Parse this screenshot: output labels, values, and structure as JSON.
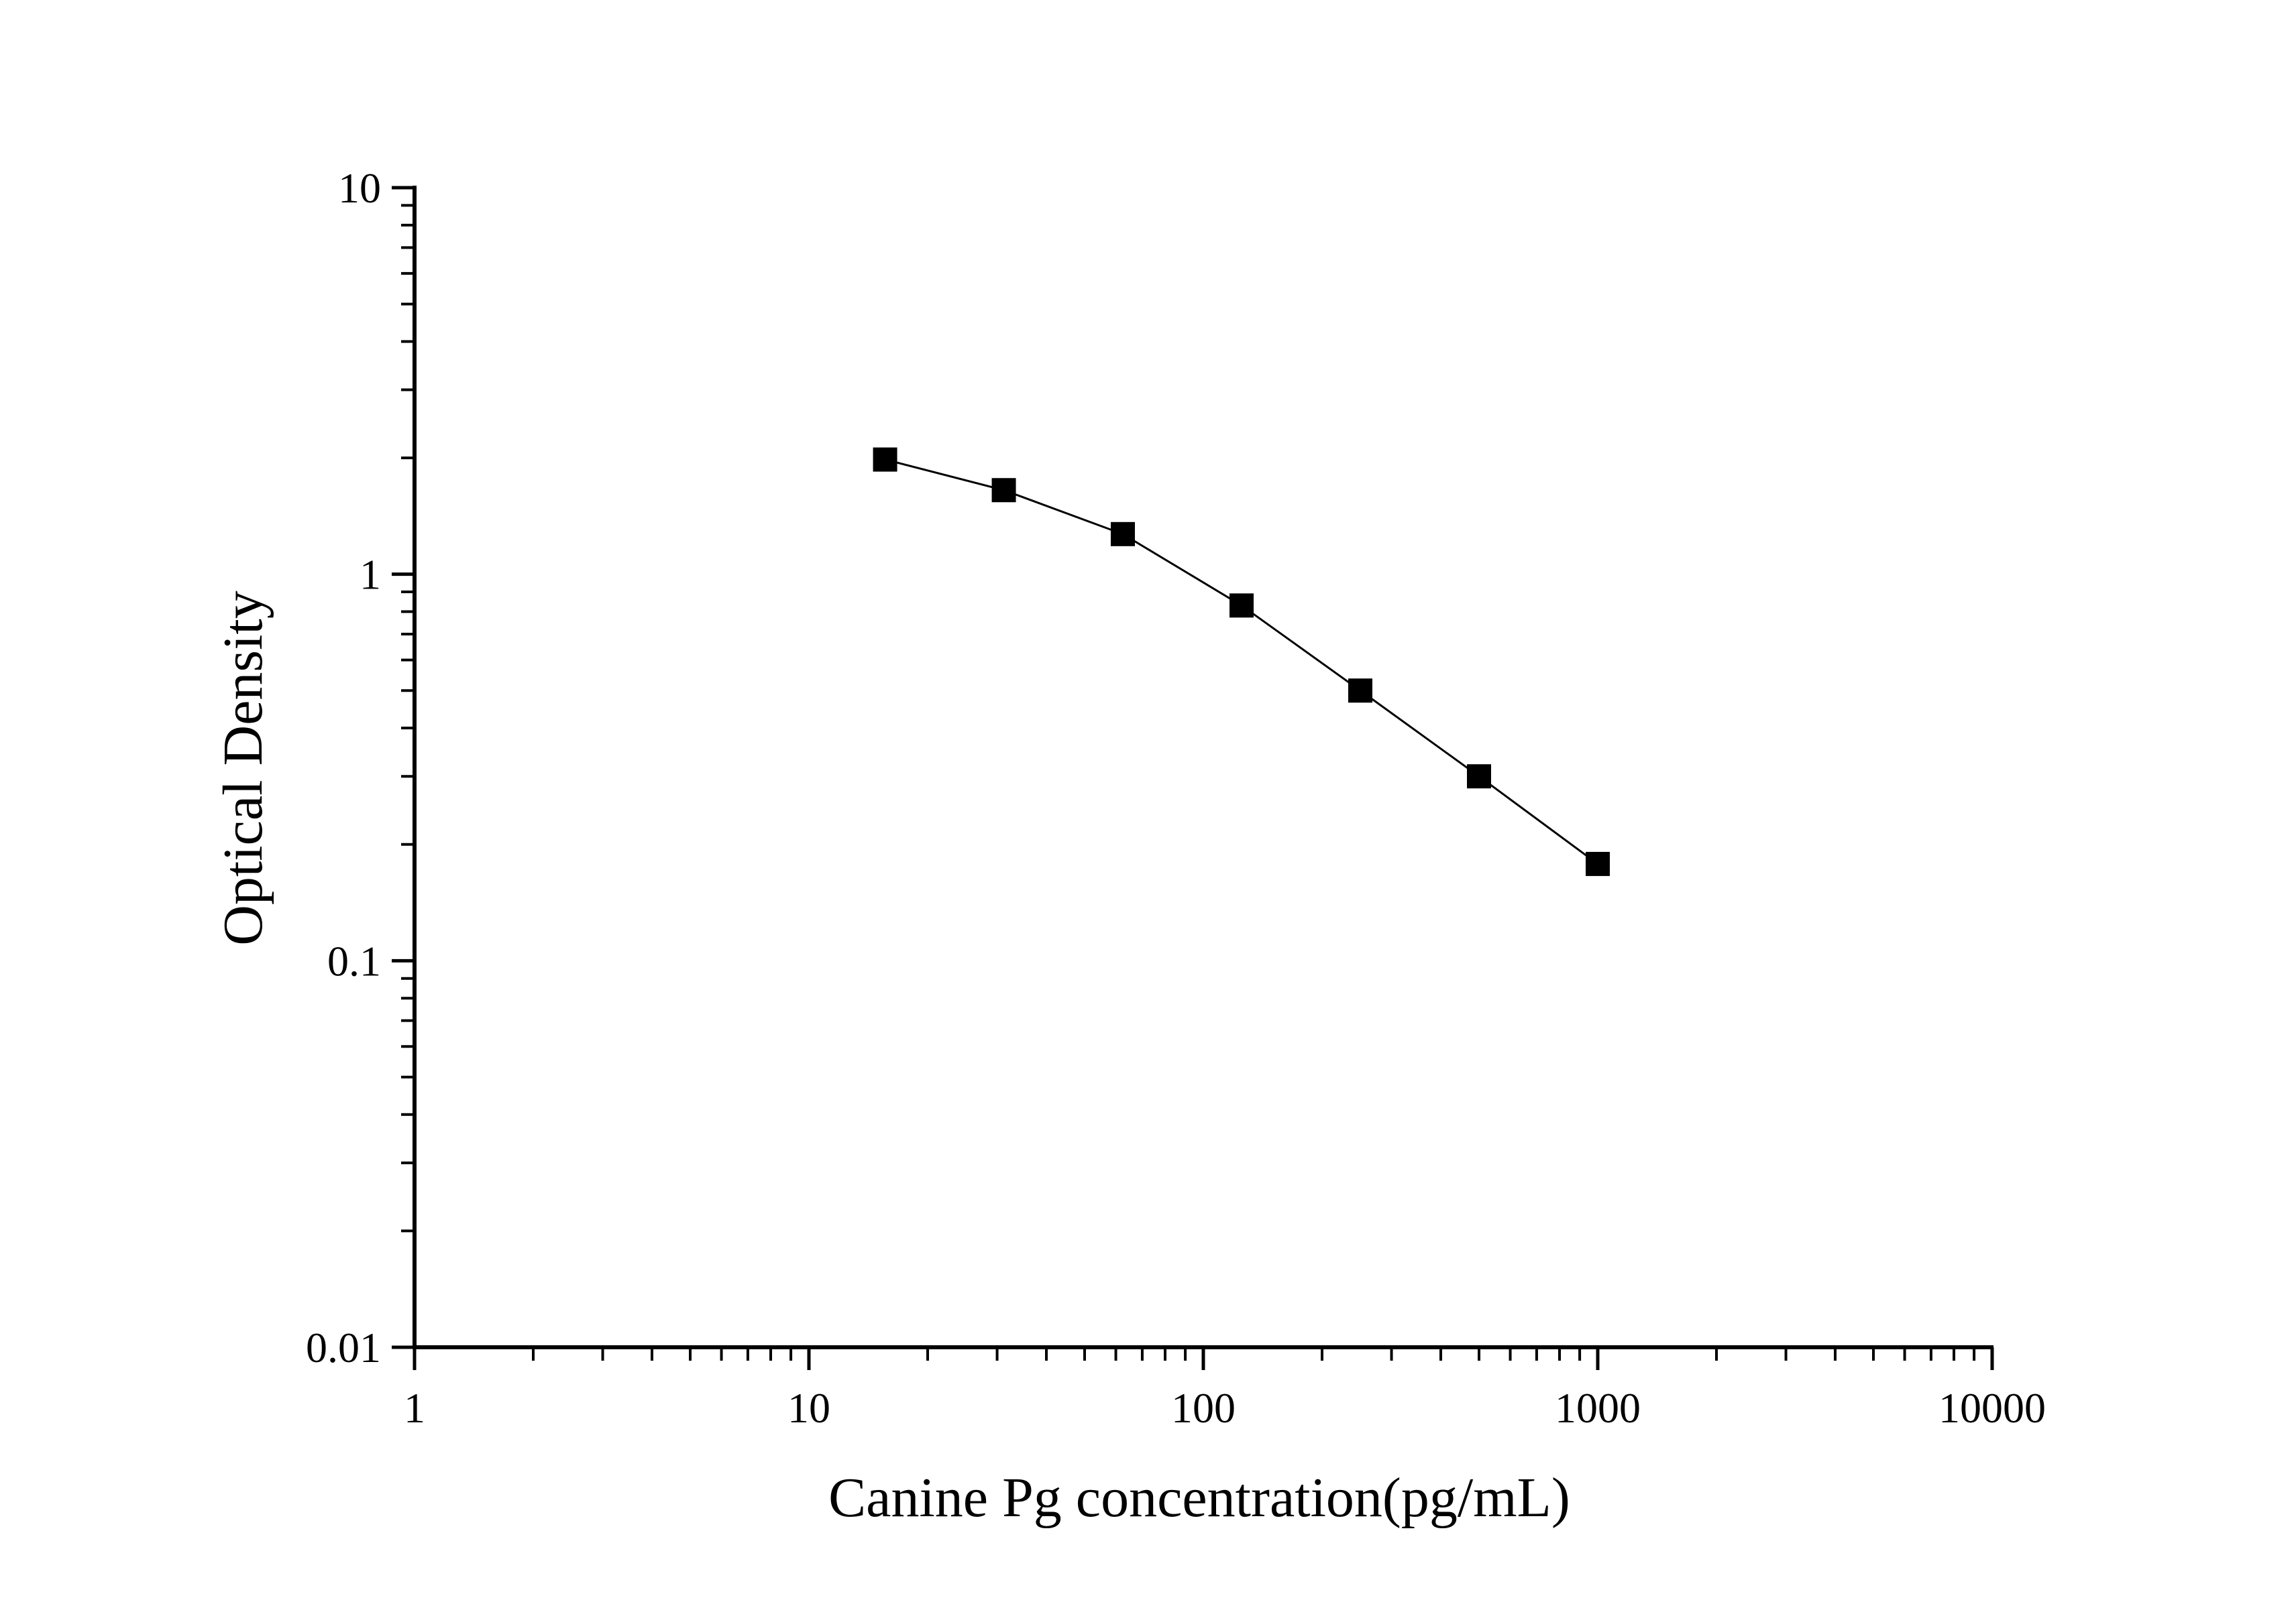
{
  "chart_data": {
    "type": "line",
    "title": "",
    "xlabel": "Canine Pg concentration(pg/mL)",
    "ylabel": "Optical Density",
    "xscale": "log",
    "yscale": "log",
    "xlim": [
      1,
      10000
    ],
    "ylim": [
      0.01,
      10
    ],
    "grid": false,
    "legend": "none",
    "x_ticks": [
      {
        "value": 1,
        "label": "1"
      },
      {
        "value": 10,
        "label": "10"
      },
      {
        "value": 100,
        "label": "100"
      },
      {
        "value": 1000,
        "label": "1000"
      },
      {
        "value": 10000,
        "label": "10000"
      }
    ],
    "y_ticks": [
      {
        "value": 0.01,
        "label": "0.01"
      },
      {
        "value": 0.1,
        "label": "0.1"
      },
      {
        "value": 1,
        "label": "1"
      },
      {
        "value": 10,
        "label": "10"
      }
    ],
    "marker": "square",
    "series": [
      {
        "x": [
          15.6,
          31.2,
          62.5,
          125,
          250,
          500,
          1000
        ],
        "y": [
          1.98,
          1.65,
          1.27,
          0.83,
          0.5,
          0.3,
          0.178
        ]
      }
    ],
    "colors": {
      "line": "#000000",
      "marker": "#000000",
      "axis": "#000000"
    }
  }
}
